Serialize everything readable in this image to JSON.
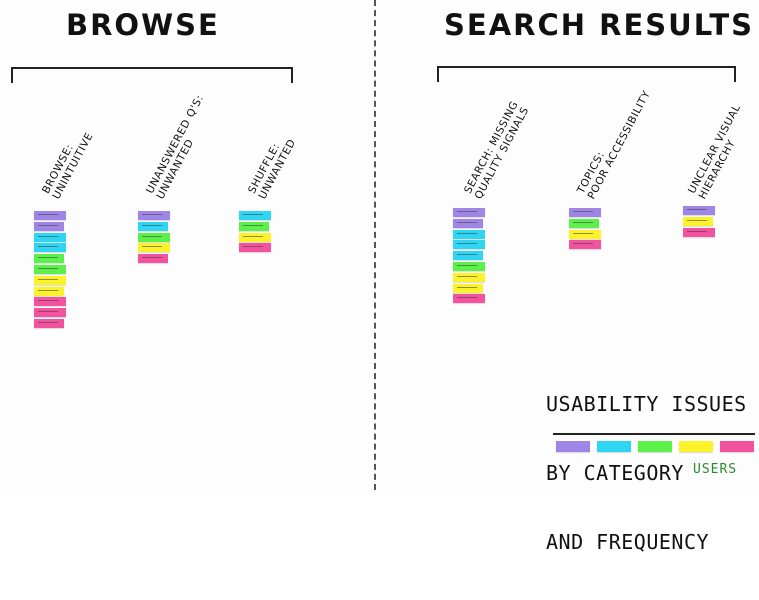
{
  "colors": {
    "purple": "#9f86e6",
    "blue": "#2fd6f4",
    "green": "#5cf04a",
    "yellow": "#fbf22a",
    "pink": "#f3529f"
  },
  "browse": {
    "title": "BROWSE",
    "categories": [
      {
        "label_lines": [
          "BROWSE:",
          "UNINTUITIVE"
        ],
        "notes": [
          "purple",
          "purple",
          "blue",
          "blue",
          "green",
          "green",
          "yellow",
          "yellow",
          "pink",
          "pink",
          "pink"
        ]
      },
      {
        "label_lines": [
          "UNANSWERED Q'S:",
          "UNWANTED"
        ],
        "notes": [
          "purple",
          "blue",
          "green",
          "yellow",
          "pink"
        ]
      },
      {
        "label_lines": [
          "SHUFFLE:",
          "UNWANTED"
        ],
        "notes": [
          "blue",
          "green",
          "yellow",
          "pink"
        ]
      }
    ]
  },
  "search_results": {
    "title": "SEARCH RESULTS",
    "categories": [
      {
        "label_lines": [
          "SEARCH: MISSING",
          "QUALITY SIGNALS"
        ],
        "notes": [
          "purple",
          "purple",
          "blue",
          "blue",
          "blue",
          "green",
          "yellow",
          "yellow",
          "pink"
        ]
      },
      {
        "label_lines": [
          "TOPICS:",
          "POOR ACCESSIBILITY"
        ],
        "notes": [
          "purple",
          "green",
          "yellow",
          "pink"
        ]
      },
      {
        "label_lines": [
          "UNCLEAR VISUAL",
          "HIERARCHY"
        ],
        "notes": [
          "purple",
          "yellow",
          "pink"
        ]
      }
    ]
  },
  "legend": {
    "title_lines": [
      "USABILITY ISSUES",
      "BY CATEGORY",
      "AND FREQUENCY"
    ],
    "swatches": [
      "purple",
      "blue",
      "green",
      "yellow",
      "pink"
    ],
    "caption": "USERS"
  }
}
